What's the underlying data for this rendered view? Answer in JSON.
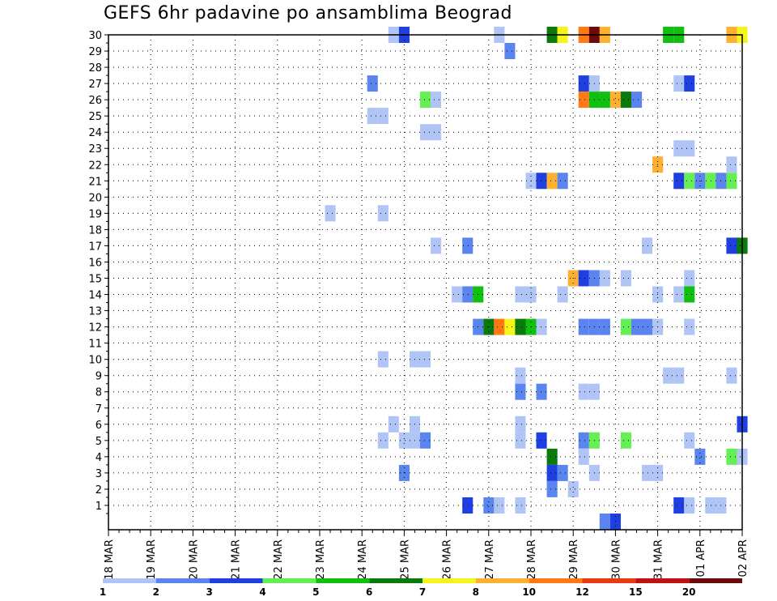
{
  "chart_data": {
    "type": "heatmap",
    "title": "GEFS 6hr padavine po ansamblima Beograd",
    "xlabel": "",
    "ylabel": "",
    "x_tick_labels": [
      "18 MAR",
      "19 MAR",
      "20 MAR",
      "21 MAR",
      "22 MAR",
      "23 MAR",
      "24 MAR",
      "25 MAR",
      "26 MAR",
      "27 MAR",
      "28 MAR",
      "29 MAR",
      "30 MAR",
      "31 MAR",
      "01 APR",
      "02 APR"
    ],
    "x_range_steps": [
      0,
      60
    ],
    "x_step_hours": 6,
    "y_tick_labels": [
      "1",
      "2",
      "3",
      "4",
      "5",
      "6",
      "7",
      "8",
      "9",
      "10",
      "11",
      "12",
      "13",
      "14",
      "15",
      "16",
      "17",
      "18",
      "19",
      "20",
      "21",
      "22",
      "23",
      "24",
      "25",
      "26",
      "27",
      "28",
      "29",
      "30"
    ],
    "ylim": [
      0,
      30
    ],
    "grid": true,
    "legend": {
      "placement": "bottom",
      "thresholds": [
        "1",
        "2",
        "3",
        "4",
        "5",
        "6",
        "7",
        "8",
        "10",
        "12",
        "15",
        "20"
      ],
      "colors": [
        "#b0c4f5",
        "#5a85ee",
        "#1f3fe0",
        "#66ee55",
        "#10c010",
        "#0a7a0a",
        "#f5f51a",
        "#ffb030",
        "#ff7a14",
        "#e83a14",
        "#c01010",
        "#6e0a0a"
      ]
    },
    "cells": [
      [
        27,
        30,
        1
      ],
      [
        28,
        30,
        3
      ],
      [
        37,
        30,
        1
      ],
      [
        42,
        30,
        6
      ],
      [
        43,
        30,
        7
      ],
      [
        45,
        30,
        9
      ],
      [
        46,
        30,
        12
      ],
      [
        47,
        30,
        8
      ],
      [
        53,
        30,
        5
      ],
      [
        54,
        30,
        5
      ],
      [
        59,
        30,
        8
      ],
      [
        60,
        30,
        7
      ],
      [
        38,
        29,
        2
      ],
      [
        25,
        27,
        2
      ],
      [
        45,
        27,
        3
      ],
      [
        46,
        27,
        1
      ],
      [
        54,
        27,
        1
      ],
      [
        55,
        27,
        3
      ],
      [
        30,
        26,
        4
      ],
      [
        31,
        26,
        1
      ],
      [
        45,
        26,
        9
      ],
      [
        46,
        26,
        5
      ],
      [
        47,
        26,
        5
      ],
      [
        48,
        26,
        8
      ],
      [
        49,
        26,
        6
      ],
      [
        50,
        26,
        2
      ],
      [
        25,
        25,
        1
      ],
      [
        26,
        25,
        1
      ],
      [
        30,
        24,
        1
      ],
      [
        31,
        24,
        1
      ],
      [
        54,
        23,
        1
      ],
      [
        55,
        23,
        1
      ],
      [
        52,
        22,
        8
      ],
      [
        59,
        22,
        1
      ],
      [
        40,
        21,
        1
      ],
      [
        41,
        21,
        3
      ],
      [
        42,
        21,
        8
      ],
      [
        43,
        21,
        2
      ],
      [
        54,
        21,
        3
      ],
      [
        55,
        21,
        4
      ],
      [
        56,
        21,
        2
      ],
      [
        57,
        21,
        4
      ],
      [
        58,
        21,
        2
      ],
      [
        59,
        21,
        4
      ],
      [
        21,
        19,
        1
      ],
      [
        26,
        19,
        1
      ],
      [
        31,
        17,
        1
      ],
      [
        34,
        17,
        2
      ],
      [
        51,
        17,
        1
      ],
      [
        59,
        17,
        3
      ],
      [
        60,
        17,
        6
      ],
      [
        44,
        15,
        8
      ],
      [
        45,
        15,
        3
      ],
      [
        46,
        15,
        2
      ],
      [
        47,
        15,
        1
      ],
      [
        49,
        15,
        1
      ],
      [
        55,
        15,
        1
      ],
      [
        33,
        14,
        1
      ],
      [
        34,
        14,
        2
      ],
      [
        35,
        14,
        5
      ],
      [
        39,
        14,
        1
      ],
      [
        40,
        14,
        1
      ],
      [
        43,
        14,
        1
      ],
      [
        52,
        14,
        1
      ],
      [
        54,
        14,
        1
      ],
      [
        55,
        14,
        5
      ],
      [
        35,
        12,
        2
      ],
      [
        36,
        12,
        6
      ],
      [
        37,
        12,
        9
      ],
      [
        38,
        12,
        7
      ],
      [
        39,
        12,
        6
      ],
      [
        40,
        12,
        5
      ],
      [
        41,
        12,
        1
      ],
      [
        45,
        12,
        2
      ],
      [
        46,
        12,
        2
      ],
      [
        47,
        12,
        2
      ],
      [
        49,
        12,
        4
      ],
      [
        50,
        12,
        2
      ],
      [
        51,
        12,
        2
      ],
      [
        52,
        12,
        1
      ],
      [
        55,
        12,
        1
      ],
      [
        26,
        10,
        1
      ],
      [
        29,
        10,
        1
      ],
      [
        30,
        10,
        1
      ],
      [
        39,
        9,
        1
      ],
      [
        53,
        9,
        1
      ],
      [
        54,
        9,
        1
      ],
      [
        59,
        9,
        1
      ],
      [
        39,
        8,
        2
      ],
      [
        41,
        8,
        2
      ],
      [
        45,
        8,
        1
      ],
      [
        46,
        8,
        1
      ],
      [
        27,
        6,
        1
      ],
      [
        29,
        6,
        1
      ],
      [
        39,
        6,
        1
      ],
      [
        60,
        6,
        3
      ],
      [
        26,
        5,
        1
      ],
      [
        28,
        5,
        1
      ],
      [
        29,
        5,
        1
      ],
      [
        30,
        5,
        2
      ],
      [
        39,
        5,
        1
      ],
      [
        41,
        5,
        3
      ],
      [
        45,
        5,
        2
      ],
      [
        46,
        5,
        4
      ],
      [
        49,
        5,
        4
      ],
      [
        55,
        5,
        1
      ],
      [
        42,
        4,
        6
      ],
      [
        45,
        4,
        1
      ],
      [
        56,
        4,
        2
      ],
      [
        59,
        4,
        4
      ],
      [
        60,
        4,
        1
      ],
      [
        28,
        3,
        2
      ],
      [
        42,
        3,
        3
      ],
      [
        43,
        3,
        2
      ],
      [
        46,
        3,
        1
      ],
      [
        51,
        3,
        1
      ],
      [
        52,
        3,
        1
      ],
      [
        42,
        2,
        2
      ],
      [
        44,
        2,
        1
      ],
      [
        34,
        1,
        3
      ],
      [
        36,
        1,
        2
      ],
      [
        37,
        1,
        1
      ],
      [
        39,
        1,
        1
      ],
      [
        54,
        1,
        3
      ],
      [
        55,
        1,
        1
      ],
      [
        57,
        1,
        1
      ],
      [
        58,
        1,
        1
      ],
      [
        47,
        0,
        2
      ],
      [
        48,
        0,
        3
      ]
    ]
  }
}
